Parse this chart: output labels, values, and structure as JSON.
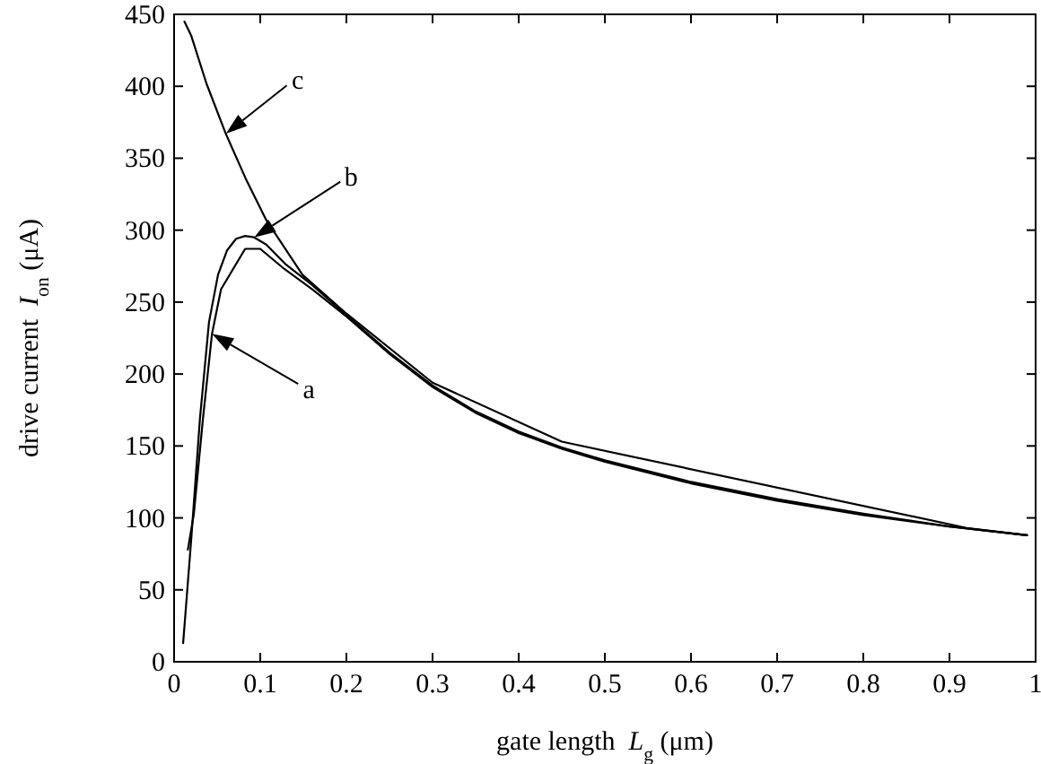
{
  "chart_data": {
    "type": "line",
    "xlabel": "gate length  L$_{g}$ (μm)",
    "ylabel": "drive current  I$_{on}$ (μA)",
    "xlim": [
      0,
      1
    ],
    "ylim": [
      0,
      450
    ],
    "xticks": [
      0,
      0.1,
      0.2,
      0.3,
      0.4,
      0.5,
      0.6,
      0.7,
      0.8,
      0.9,
      1
    ],
    "yticks": [
      0,
      50,
      100,
      150,
      200,
      250,
      300,
      350,
      400,
      450
    ],
    "line_style": "solid",
    "series": [
      {
        "name": "a",
        "color": "#000000",
        "x": [
          0.016,
          0.023,
          0.0335,
          0.044,
          0.0545,
          0.0825,
          0.1,
          0.128,
          0.16,
          0.2,
          0.25,
          0.3,
          0.35,
          0.4,
          0.45,
          0.5,
          0.6,
          0.7,
          0.8,
          0.9,
          0.99
        ],
        "values": [
          78,
          103,
          169,
          228,
          259,
          287,
          287,
          273,
          259,
          240,
          214,
          191,
          173,
          159,
          148,
          139,
          124,
          112,
          102,
          94,
          88
        ]
      },
      {
        "name": "b",
        "color": "#000000",
        "x": [
          0.0105,
          0.02,
          0.03,
          0.0405,
          0.051,
          0.0615,
          0.072,
          0.0825,
          0.093,
          0.107,
          0.13,
          0.16,
          0.2,
          0.25,
          0.3,
          0.35,
          0.4,
          0.45,
          0.5,
          0.6,
          0.7,
          0.8,
          0.9,
          0.99
        ],
        "values": [
          13,
          86,
          169,
          236,
          269,
          286,
          294,
          296,
          295,
          290,
          276,
          262,
          241,
          215,
          192,
          174,
          160,
          149,
          140,
          125,
          113,
          103,
          94,
          88
        ]
      },
      {
        "name": "c",
        "color": "#000000",
        "x": [
          0.012,
          0.02,
          0.0375,
          0.06,
          0.083,
          0.107,
          0.149,
          0.2,
          0.3,
          0.45,
          0.92,
          0.99
        ],
        "values": [
          445,
          435,
          402,
          367,
          336,
          307,
          269,
          242,
          194,
          153,
          93,
          88
        ]
      }
    ]
  }
}
